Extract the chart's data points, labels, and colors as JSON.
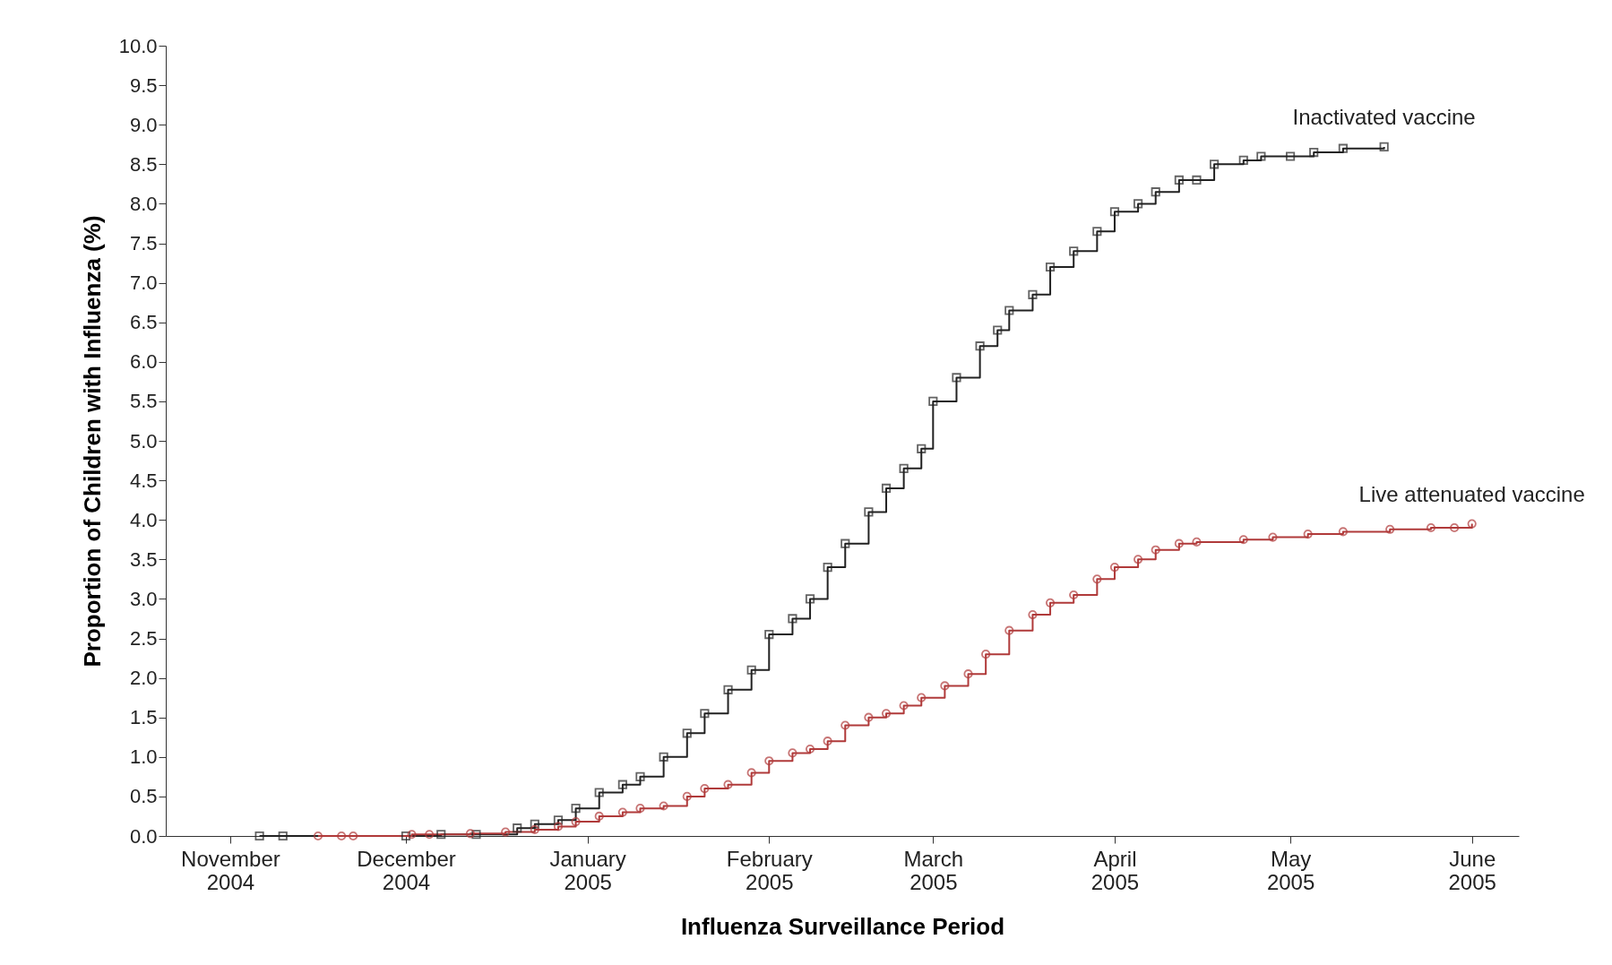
{
  "chart_data": {
    "type": "step",
    "xlabel": "Influenza Surveillance Period",
    "ylabel": "Proportion of Children with Influenza (%)",
    "xlim": [
      "2004-10-21",
      "2005-06-09"
    ],
    "ylim": [
      0,
      10
    ],
    "xticks": [
      {
        "value": "2004-11-01",
        "label": "November 2004"
      },
      {
        "value": "2004-12-01",
        "label": "December 2004"
      },
      {
        "value": "2005-01-01",
        "label": "January 2005"
      },
      {
        "value": "2005-02-01",
        "label": "February 2005"
      },
      {
        "value": "2005-03-01",
        "label": "March 2005"
      },
      {
        "value": "2005-04-01",
        "label": "April 2005"
      },
      {
        "value": "2005-05-01",
        "label": "May 2005"
      },
      {
        "value": "2005-06-01",
        "label": "June 2005"
      }
    ],
    "yticks": [
      {
        "value": 0,
        "label": "0.0"
      },
      {
        "value": 0.5,
        "label": "0.5"
      },
      {
        "value": 1,
        "label": "1.0"
      },
      {
        "value": 1.5,
        "label": "1.5"
      },
      {
        "value": 2,
        "label": "2.0"
      },
      {
        "value": 2.5,
        "label": "2.5"
      },
      {
        "value": 3,
        "label": "3.0"
      },
      {
        "value": 3.5,
        "label": "3.5"
      },
      {
        "value": 4,
        "label": "4.0"
      },
      {
        "value": 4.5,
        "label": "4.5"
      },
      {
        "value": 5,
        "label": "5.0"
      },
      {
        "value": 5.5,
        "label": "5.5"
      },
      {
        "value": 6,
        "label": "6.0"
      },
      {
        "value": 6.5,
        "label": "6.5"
      },
      {
        "value": 7,
        "label": "7.0"
      },
      {
        "value": 7.5,
        "label": "7.5"
      },
      {
        "value": 8,
        "label": "8.0"
      },
      {
        "value": 8.5,
        "label": "8.5"
      },
      {
        "value": 9,
        "label": "9.0"
      },
      {
        "value": 9.5,
        "label": "9.5"
      },
      {
        "value": 10,
        "label": "10.0"
      }
    ],
    "grid": false,
    "line_style": "solid",
    "series": [
      {
        "name": "Inactivated vaccine",
        "color": "#222222",
        "marker": "square",
        "x": [
          "2004-11-06",
          "2004-11-10",
          "2004-12-01",
          "2004-12-07",
          "2004-12-13",
          "2004-12-20",
          "2004-12-23",
          "2004-12-27",
          "2004-12-30",
          "2005-01-03",
          "2005-01-07",
          "2005-01-10",
          "2005-01-14",
          "2005-01-18",
          "2005-01-21",
          "2005-01-25",
          "2005-01-29",
          "2005-02-01",
          "2005-02-05",
          "2005-02-08",
          "2005-02-11",
          "2005-02-14",
          "2005-02-18",
          "2005-02-21",
          "2005-02-24",
          "2005-02-27",
          "2005-03-01",
          "2005-03-05",
          "2005-03-09",
          "2005-03-12",
          "2005-03-14",
          "2005-03-18",
          "2005-03-21",
          "2005-03-25",
          "2005-03-29",
          "2005-04-01",
          "2005-04-05",
          "2005-04-08",
          "2005-04-12",
          "2005-04-15",
          "2005-04-18",
          "2005-04-23",
          "2005-04-26",
          "2005-05-01",
          "2005-05-05",
          "2005-05-10",
          "2005-05-17"
        ],
        "values": [
          0,
          0,
          0,
          0.02,
          0.02,
          0.1,
          0.15,
          0.2,
          0.35,
          0.55,
          0.65,
          0.75,
          1.0,
          1.3,
          1.55,
          1.85,
          2.1,
          2.55,
          2.75,
          3.0,
          3.4,
          3.7,
          4.1,
          4.4,
          4.65,
          4.9,
          5.5,
          5.8,
          6.2,
          6.4,
          6.65,
          6.85,
          7.2,
          7.4,
          7.65,
          7.9,
          8.0,
          8.15,
          8.3,
          8.3,
          8.5,
          8.55,
          8.6,
          8.6,
          8.65,
          8.7,
          8.72
        ]
      },
      {
        "name": "Live attenuated vaccine",
        "color": "#b03a3a",
        "marker": "circle",
        "x": [
          "2004-11-16",
          "2004-11-20",
          "2004-11-22",
          "2004-12-02",
          "2004-12-05",
          "2004-12-12",
          "2004-12-18",
          "2004-12-23",
          "2004-12-27",
          "2004-12-30",
          "2005-01-03",
          "2005-01-07",
          "2005-01-10",
          "2005-01-14",
          "2005-01-18",
          "2005-01-21",
          "2005-01-25",
          "2005-01-29",
          "2005-02-01",
          "2005-02-05",
          "2005-02-08",
          "2005-02-11",
          "2005-02-14",
          "2005-02-18",
          "2005-02-21",
          "2005-02-24",
          "2005-02-27",
          "2005-03-03",
          "2005-03-07",
          "2005-03-10",
          "2005-03-14",
          "2005-03-18",
          "2005-03-21",
          "2005-03-25",
          "2005-03-29",
          "2005-04-01",
          "2005-04-05",
          "2005-04-08",
          "2005-04-12",
          "2005-04-15",
          "2005-04-23",
          "2005-04-28",
          "2005-05-04",
          "2005-05-10",
          "2005-05-18",
          "2005-05-25",
          "2005-05-29",
          "2005-06-01"
        ],
        "values": [
          0,
          0,
          0,
          0.02,
          0.02,
          0.03,
          0.05,
          0.08,
          0.12,
          0.18,
          0.25,
          0.3,
          0.35,
          0.38,
          0.5,
          0.6,
          0.65,
          0.8,
          0.95,
          1.05,
          1.1,
          1.2,
          1.4,
          1.5,
          1.55,
          1.65,
          1.75,
          1.9,
          2.05,
          2.3,
          2.6,
          2.8,
          2.95,
          3.05,
          3.25,
          3.4,
          3.5,
          3.62,
          3.7,
          3.72,
          3.75,
          3.78,
          3.82,
          3.85,
          3.88,
          3.9,
          3.9,
          3.95
        ]
      }
    ]
  }
}
